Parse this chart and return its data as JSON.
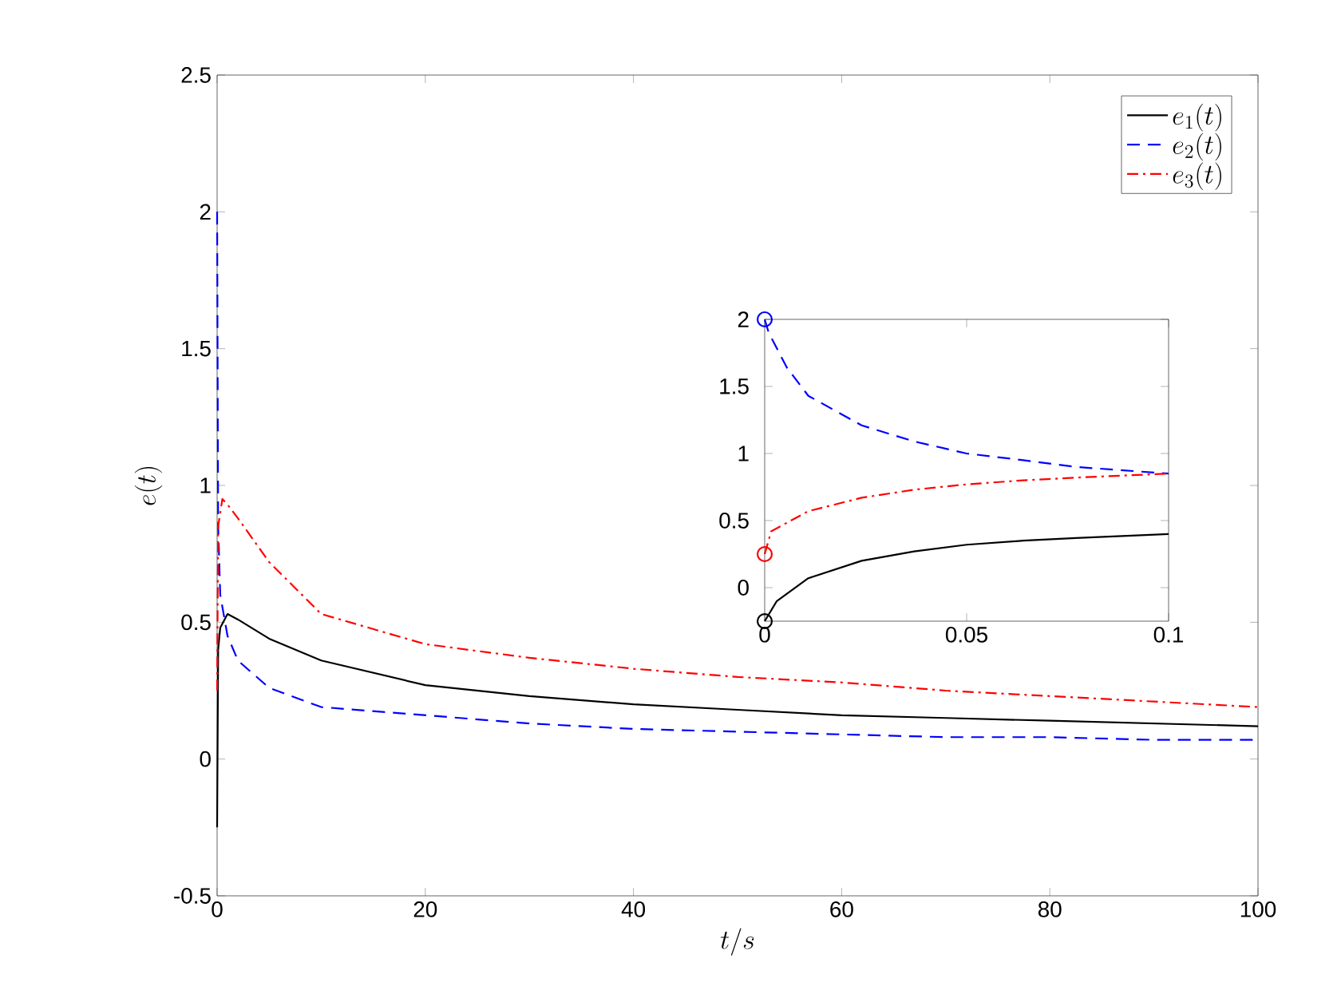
{
  "chart_data": [
    {
      "type": "line",
      "xlabel": "t/s",
      "ylabel": "e(t)",
      "xlim": [
        0,
        100
      ],
      "ylim": [
        -0.5,
        2.5
      ],
      "xticks": [
        0,
        20,
        40,
        60,
        80,
        100
      ],
      "yticks": [
        -0.5,
        0,
        0.5,
        1,
        1.5,
        2,
        2.5
      ],
      "legend": "top right",
      "series": [
        {
          "name": "e_1(t)",
          "color": "#000000",
          "line_style": "solid",
          "x": [
            0,
            0.1,
            0.3,
            1,
            2,
            5,
            10,
            20,
            30,
            40,
            50,
            60,
            70,
            80,
            90,
            100
          ],
          "values": [
            -0.25,
            0.4,
            0.48,
            0.53,
            0.51,
            0.44,
            0.36,
            0.27,
            0.23,
            0.2,
            0.18,
            0.16,
            0.15,
            0.14,
            0.13,
            0.12
          ]
        },
        {
          "name": "e_2(t)",
          "color": "#0000ff",
          "line_style": "dashed",
          "x": [
            0,
            0.1,
            0.3,
            1,
            2,
            5,
            10,
            20,
            30,
            40,
            50,
            60,
            70,
            80,
            90,
            100
          ],
          "values": [
            2,
            0.85,
            0.6,
            0.45,
            0.36,
            0.26,
            0.19,
            0.16,
            0.13,
            0.11,
            0.1,
            0.09,
            0.08,
            0.08,
            0.07,
            0.07
          ]
        },
        {
          "name": "e_3(t)",
          "color": "#ff0000",
          "line_style": "dashdot",
          "x": [
            0,
            0.1,
            0.5,
            1,
            2,
            5,
            10,
            20,
            30,
            40,
            50,
            60,
            70,
            80,
            90,
            100
          ],
          "values": [
            0.25,
            0.85,
            0.95,
            0.93,
            0.88,
            0.72,
            0.53,
            0.42,
            0.37,
            0.33,
            0.3,
            0.28,
            0.25,
            0.23,
            0.21,
            0.19
          ]
        }
      ]
    },
    {
      "type": "line",
      "xlim": [
        0,
        0.1
      ],
      "ylim": [
        -0.25,
        2
      ],
      "xticks": [
        0,
        0.05,
        0.1
      ],
      "yticks": [
        0,
        0.5,
        1,
        1.5,
        2
      ],
      "series": [
        {
          "color": "#000000",
          "line_style": "solid",
          "x": [
            0,
            0.003,
            0.0108,
            0.024,
            0.037,
            0.05,
            0.064,
            0.077,
            0.1
          ],
          "values": [
            -0.25,
            -0.1,
            0.07,
            0.2,
            0.27,
            0.32,
            0.35,
            0.37,
            0.4
          ]
        },
        {
          "color": "#0000ff",
          "line_style": "dashed",
          "x": [
            0,
            0.001,
            0.0055,
            0.0108,
            0.024,
            0.037,
            0.05,
            0.064,
            0.077,
            0.1
          ],
          "values": [
            2,
            1.9,
            1.64,
            1.43,
            1.21,
            1.09,
            1,
            0.95,
            0.9,
            0.85
          ]
        },
        {
          "color": "#ff0000",
          "line_style": "dashdot",
          "x": [
            0,
            0.0016,
            0.0108,
            0.024,
            0.037,
            0.05,
            0.064,
            0.077,
            0.1
          ],
          "values": [
            0.25,
            0.42,
            0.57,
            0.67,
            0.73,
            0.77,
            0.8,
            0.82,
            0.85
          ]
        },
        {
          "type": "scatter",
          "marker": "circle",
          "x": [
            0,
            0,
            0
          ],
          "values": [
            -0.25,
            2,
            0.25
          ],
          "colors": [
            "#000000",
            "#0000ff",
            "#ff0000"
          ]
        }
      ]
    }
  ]
}
